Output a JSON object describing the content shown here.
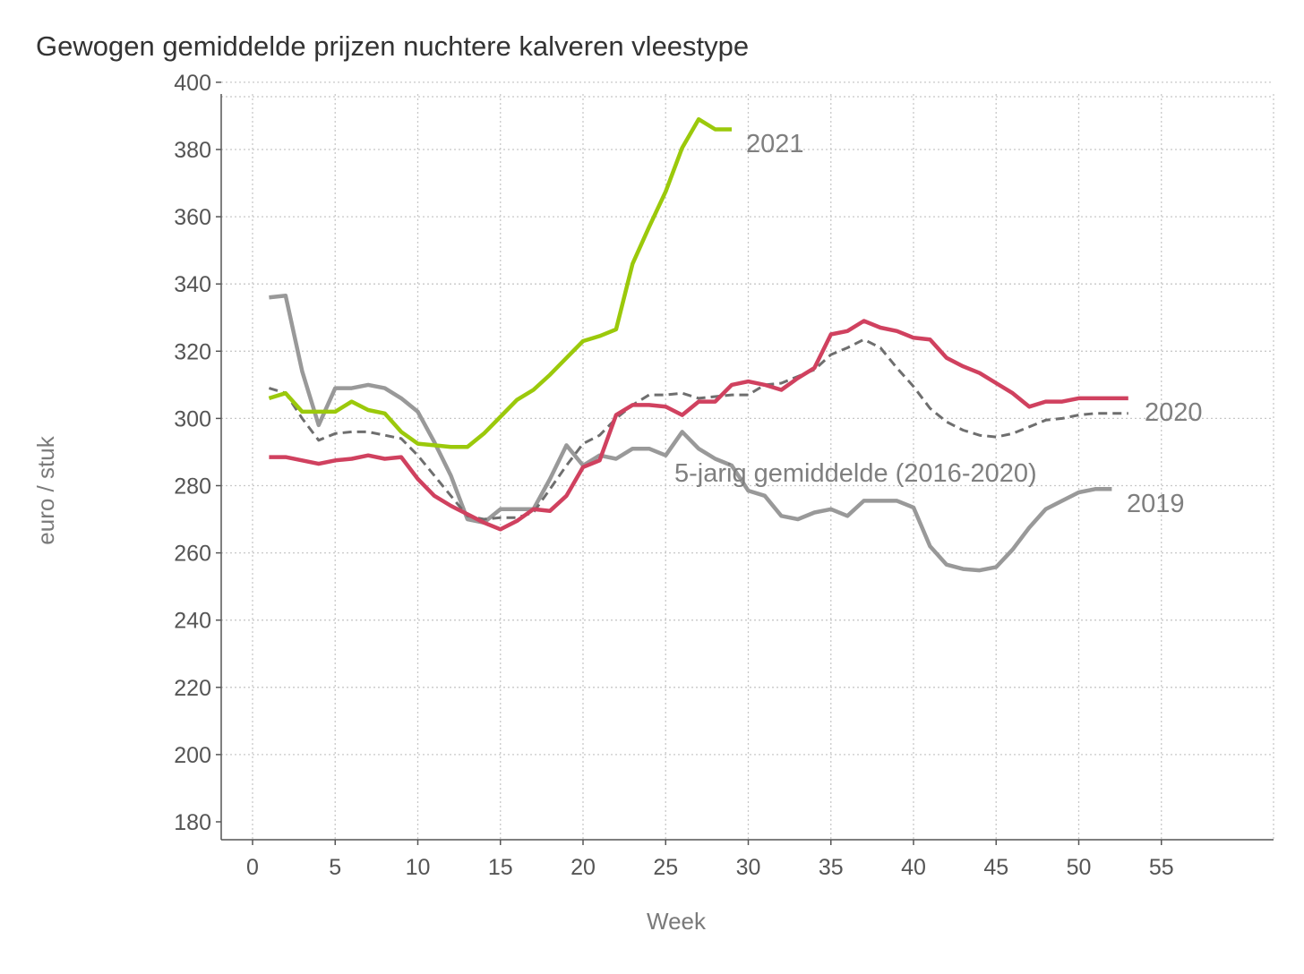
{
  "chart_data": {
    "type": "line",
    "title": "Gewogen gemiddelde prijzen nuchtere kalveren vleestype",
    "xlabel": "Week",
    "ylabel": "euro / stuk",
    "xlim": [
      0,
      61
    ],
    "ylim": [
      178,
      405
    ],
    "xticks": [
      0,
      5,
      10,
      15,
      20,
      25,
      30,
      35,
      40,
      45,
      50,
      55
    ],
    "yticks": [
      180,
      200,
      220,
      240,
      260,
      280,
      300,
      320,
      340,
      360,
      380,
      400
    ],
    "grid": true,
    "legend": "inline labels",
    "series": [
      {
        "name": "2019",
        "color": "#999999",
        "style": "solid",
        "x": [
          1,
          2,
          3,
          4,
          5,
          6,
          7,
          8,
          9,
          10,
          11,
          12,
          13,
          14,
          15,
          16,
          17,
          18,
          19,
          20,
          21,
          22,
          23,
          24,
          25,
          26,
          27,
          28,
          29,
          30,
          31,
          32,
          33,
          34,
          35,
          36,
          37,
          38,
          39,
          40,
          41,
          42,
          43,
          44,
          45,
          46,
          47,
          48,
          49,
          50,
          51,
          52
        ],
        "y": [
          336,
          336.5,
          314,
          298,
          309,
          309,
          310,
          309,
          306,
          302,
          293,
          283,
          270,
          269,
          273,
          273,
          273,
          282,
          292,
          286,
          289,
          288,
          291,
          291,
          289,
          296,
          291,
          288,
          286,
          278.5,
          277,
          271,
          270,
          272,
          273,
          271,
          275.5,
          275.5,
          275.5,
          273.5,
          262,
          256.5,
          255.2,
          254.8,
          255.8,
          261,
          267.5,
          273,
          275.5,
          278,
          279,
          279
        ]
      },
      {
        "name": "2020",
        "color": "#d0415f",
        "style": "solid",
        "x": [
          1,
          2,
          3,
          4,
          5,
          6,
          7,
          8,
          9,
          10,
          11,
          12,
          13,
          14,
          15,
          16,
          17,
          18,
          19,
          20,
          21,
          22,
          23,
          24,
          25,
          26,
          27,
          28,
          29,
          30,
          31,
          32,
          33,
          34,
          35,
          36,
          37,
          38,
          39,
          40,
          41,
          42,
          43,
          44,
          45,
          46,
          47,
          48,
          49,
          50,
          51,
          52,
          53
        ],
        "y": [
          288.5,
          288.5,
          287.5,
          286.5,
          287.5,
          288,
          289,
          288,
          288.5,
          282,
          277,
          274,
          271.5,
          269,
          267,
          269.5,
          273,
          272.5,
          277,
          285.5,
          287.5,
          301,
          304,
          304,
          303.5,
          301,
          305,
          305,
          310,
          311,
          310,
          308.5,
          312,
          315,
          325,
          326,
          329,
          327,
          326,
          324,
          323.5,
          318,
          315.5,
          313.5,
          310.5,
          307.5,
          303.5,
          305,
          305,
          306,
          306,
          306,
          306
        ]
      },
      {
        "name": "2021",
        "color": "#9bc90b",
        "style": "solid",
        "x": [
          1,
          2,
          3,
          4,
          5,
          6,
          7,
          8,
          9,
          10,
          11,
          12,
          13,
          14,
          15,
          16,
          17,
          18,
          19,
          20,
          21,
          22,
          23,
          24,
          25,
          26,
          27,
          28,
          29
        ],
        "y": [
          306,
          307.5,
          302,
          302,
          302,
          305,
          302.5,
          301.5,
          296,
          292.5,
          292,
          291.5,
          291.5,
          295.5,
          300.5,
          305.5,
          308.5,
          313,
          318,
          323,
          324.5,
          326.5,
          346,
          357,
          367.5,
          380.5,
          389,
          386,
          386
        ]
      },
      {
        "name": "5-jarig gemiddelde (2016-2020)",
        "color": "#6e6e6e",
        "style": "dashed",
        "x": [
          1,
          2,
          3,
          4,
          5,
          6,
          7,
          8,
          9,
          10,
          11,
          12,
          13,
          14,
          15,
          16,
          17,
          18,
          19,
          20,
          21,
          22,
          23,
          24,
          25,
          26,
          27,
          28,
          29,
          30,
          31,
          32,
          33,
          34,
          35,
          36,
          37,
          38,
          39,
          40,
          41,
          42,
          43,
          44,
          45,
          46,
          47,
          48,
          49,
          50,
          51,
          52,
          53
        ],
        "y": [
          309,
          307.5,
          300,
          293.5,
          295.5,
          296,
          296,
          295,
          294,
          289,
          283,
          277,
          271,
          270,
          270.5,
          270.5,
          272,
          279,
          286,
          292.5,
          295,
          300,
          304,
          307,
          307,
          307.5,
          306,
          306.5,
          307,
          307,
          310,
          310.5,
          312.5,
          314.5,
          319,
          321,
          323.5,
          321,
          315,
          309.5,
          303,
          299,
          296.5,
          295,
          294.5,
          295.5,
          297.5,
          299.5,
          300,
          301,
          301.5,
          301.5,
          301.5
        ]
      }
    ],
    "series_labels": [
      "2021",
      "2020",
      "5-jarig gemiddelde (2016-2020)",
      "2019"
    ]
  }
}
